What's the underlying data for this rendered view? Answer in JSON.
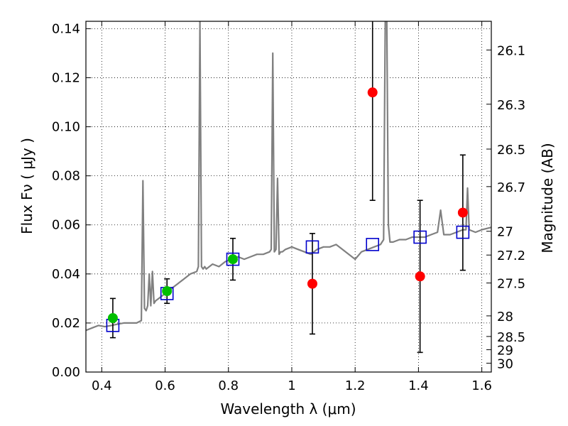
{
  "chart_data": {
    "type": "scatter",
    "xlabel": "Wavelength  λ (μm)",
    "ylabel": "Flux  Fν  ( μJy )",
    "y2label": "Magnitude (AB)",
    "xlim": [
      0.35,
      1.63
    ],
    "ylim": [
      0.0,
      0.143
    ],
    "grid": true,
    "x_ticks": [
      0.4,
      0.6,
      0.8,
      1.0,
      1.2,
      1.4,
      1.6
    ],
    "x_tick_labels": [
      "0.4",
      "0.6",
      "0.8",
      "1",
      "1.2",
      "1.4",
      "1.6"
    ],
    "y_ticks": [
      0.0,
      0.02,
      0.04,
      0.06,
      0.08,
      0.1,
      0.12,
      0.14
    ],
    "y_tick_labels": [
      "0.00",
      "0.02",
      "0.04",
      "0.06",
      "0.08",
      "0.10",
      "0.12",
      "0.14"
    ],
    "y2_ticks": [
      {
        "label": "26.1",
        "flux": 0.1313
      },
      {
        "label": "26.3",
        "flux": 0.1092
      },
      {
        "label": "26.5",
        "flux": 0.0909
      },
      {
        "label": "26.7",
        "flux": 0.0756
      },
      {
        "label": "27",
        "flux": 0.0574
      },
      {
        "label": "27.2",
        "flux": 0.0477
      },
      {
        "label": "27.5",
        "flux": 0.0363
      },
      {
        "label": "28",
        "flux": 0.0229
      },
      {
        "label": "28.5",
        "flux": 0.0145
      },
      {
        "label": "29",
        "flux": 0.0091
      },
      {
        "label": "30",
        "flux": 0.0036
      }
    ],
    "series": [
      {
        "kind": "spectrum",
        "color": "#808080",
        "x": [
          0.35,
          0.37,
          0.39,
          0.41,
          0.43,
          0.45,
          0.47,
          0.49,
          0.51,
          0.525,
          0.53,
          0.535,
          0.54,
          0.545,
          0.55,
          0.555,
          0.56,
          0.565,
          0.57,
          0.58,
          0.59,
          0.6,
          0.62,
          0.64,
          0.66,
          0.68,
          0.7,
          0.705,
          0.71,
          0.715,
          0.72,
          0.725,
          0.73,
          0.75,
          0.77,
          0.79,
          0.81,
          0.83,
          0.85,
          0.87,
          0.89,
          0.91,
          0.93,
          0.935,
          0.94,
          0.945,
          0.95,
          0.955,
          0.96,
          0.965,
          0.97,
          0.98,
          1.0,
          1.02,
          1.04,
          1.06,
          1.08,
          1.1,
          1.12,
          1.14,
          1.16,
          1.18,
          1.2,
          1.22,
          1.24,
          1.26,
          1.28,
          1.29,
          1.295,
          1.3,
          1.305,
          1.31,
          1.32,
          1.34,
          1.36,
          1.38,
          1.4,
          1.42,
          1.44,
          1.46,
          1.47,
          1.48,
          1.5,
          1.52,
          1.54,
          1.55,
          1.555,
          1.56,
          1.58,
          1.6,
          1.63
        ],
        "y": [
          0.017,
          0.018,
          0.019,
          0.0185,
          0.019,
          0.0195,
          0.02,
          0.02,
          0.02,
          0.021,
          0.078,
          0.026,
          0.025,
          0.027,
          0.04,
          0.027,
          0.041,
          0.028,
          0.029,
          0.03,
          0.031,
          0.032,
          0.034,
          0.036,
          0.038,
          0.04,
          0.041,
          0.043,
          0.143,
          0.043,
          0.042,
          0.043,
          0.042,
          0.044,
          0.043,
          0.045,
          0.046,
          0.047,
          0.046,
          0.047,
          0.048,
          0.048,
          0.049,
          0.05,
          0.13,
          0.049,
          0.05,
          0.079,
          0.048,
          0.049,
          0.049,
          0.05,
          0.051,
          0.05,
          0.049,
          0.048,
          0.05,
          0.051,
          0.051,
          0.052,
          0.05,
          0.048,
          0.046,
          0.049,
          0.05,
          0.051,
          0.052,
          0.054,
          0.143,
          0.143,
          0.06,
          0.053,
          0.053,
          0.054,
          0.054,
          0.055,
          0.055,
          0.055,
          0.056,
          0.057,
          0.066,
          0.056,
          0.056,
          0.057,
          0.058,
          0.058,
          0.075,
          0.058,
          0.057,
          0.058,
          0.059
        ]
      },
      {
        "kind": "model_photometry",
        "marker": "square",
        "color": "#0000cc",
        "x": [
          0.435,
          0.606,
          0.814,
          1.065,
          1.255,
          1.405,
          1.54
        ],
        "y": [
          0.019,
          0.032,
          0.046,
          0.051,
          0.052,
          0.055,
          0.057
        ]
      },
      {
        "kind": "detections",
        "marker": "circle",
        "color": "#00bf00",
        "x": [
          0.435,
          0.606,
          0.814
        ],
        "y": [
          0.022,
          0.033,
          0.046
        ],
        "err": [
          0.008,
          0.005,
          0.0085
        ]
      },
      {
        "kind": "non_detections",
        "marker": "circle",
        "color": "#ff0000",
        "x": [
          1.065,
          1.255,
          1.405,
          1.54
        ],
        "y": [
          0.036,
          0.114,
          0.039,
          0.065
        ],
        "err": [
          0.0205,
          0.044,
          0.031,
          0.0235
        ]
      }
    ]
  }
}
